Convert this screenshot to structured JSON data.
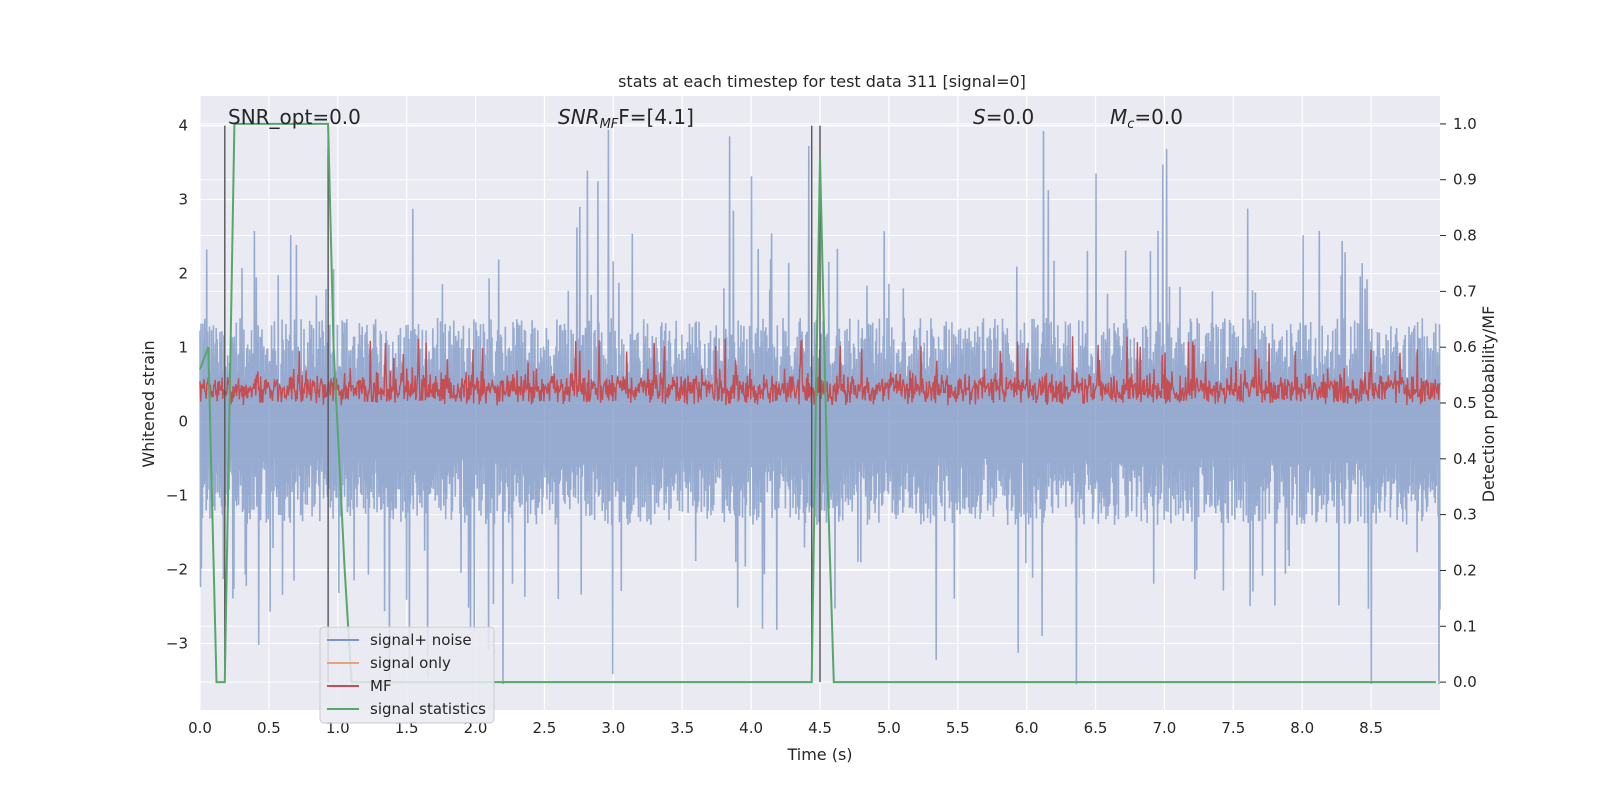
{
  "chart_data": {
    "type": "line",
    "title": "stats at each timestep for test data 311 [signal=0]",
    "xlabel": "Time (s)",
    "ylabel_left": "Whitened strain",
    "ylabel_right": "Detection probability/MF",
    "xlim": [
      0,
      9.0
    ],
    "ylim_left": [
      -3.9,
      4.4
    ],
    "ylim_right": [
      -0.05,
      1.05
    ],
    "x_ticks": [
      "0.0",
      "0.5",
      "1.0",
      "1.5",
      "2.0",
      "2.5",
      "3.0",
      "3.5",
      "4.0",
      "4.5",
      "5.0",
      "5.5",
      "6.0",
      "6.5",
      "7.0",
      "7.5",
      "8.0",
      "8.5"
    ],
    "y_ticks_left": [
      "−3",
      "−2",
      "−1",
      "0",
      "1",
      "2",
      "3",
      "4"
    ],
    "y_ticks_right": [
      "0.0",
      "0.1",
      "0.2",
      "0.3",
      "0.4",
      "0.5",
      "0.6",
      "0.7",
      "0.8",
      "0.9",
      "1.0"
    ],
    "grid": true,
    "background_color": "#eaeaf2",
    "grid_color": "#ffffff",
    "legend_position": "lower-left",
    "annotations": {
      "snr_opt": "SNR_opt=0.0",
      "snr_mf_label": "SNR",
      "snr_mf_sub": "MF",
      "snr_mf_value": "F=[4.1]",
      "s_label": "S",
      "s_value": "=0.0",
      "mc_label": "M",
      "mc_sub": "c",
      "mc_value": "=0.0"
    },
    "series": [
      {
        "name": "signal+ noise",
        "color": "#7b96c6",
        "axis": "left",
        "description_of_values": "noise envelope approx ±1.4 with spikes up to ±4",
        "approx_envelope": [
          1.4,
          -1.4
        ],
        "approx_spike_max": 4.0,
        "approx_spike_min": -3.55
      },
      {
        "name": "signal only",
        "color": "#e8a07e",
        "axis": "left",
        "values": []
      },
      {
        "name": "MF",
        "color": "#c44e52",
        "axis": "right",
        "approx_range": [
          0.5,
          0.6
        ]
      },
      {
        "name": "signal statistics",
        "color": "#55a868",
        "axis": "right",
        "x": [
          0.0,
          0.03,
          0.06,
          0.12,
          0.18,
          0.25,
          0.93,
          0.97,
          1.05,
          1.1,
          4.44,
          4.47,
          4.5,
          4.55,
          4.6,
          8.97
        ],
        "y": [
          0.56,
          0.58,
          0.6,
          0.0,
          0.0,
          1.0,
          1.0,
          0.6,
          0.2,
          0.0,
          0.0,
          0.5,
          0.94,
          0.4,
          0.0,
          0.0
        ]
      }
    ],
    "vertical_lines_x": [
      0.18,
      0.93,
      4.44,
      4.5
    ],
    "vertical_lines_color": "#555555"
  }
}
